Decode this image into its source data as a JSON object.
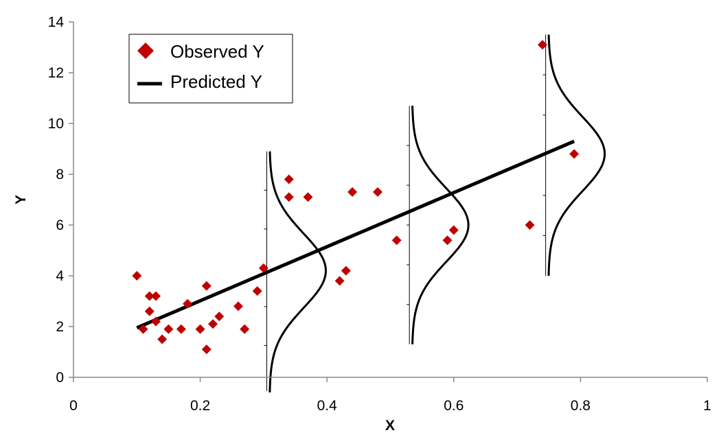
{
  "chart_data": {
    "type": "scatter",
    "xlabel": "X",
    "ylabel": "Y",
    "xlim": [
      0,
      1
    ],
    "ylim": [
      0,
      14
    ],
    "x_ticks": [
      "0",
      "0.2",
      "0.4",
      "0.6",
      "0.8",
      "1"
    ],
    "y_ticks": [
      "0",
      "2",
      "4",
      "6",
      "8",
      "10",
      "12",
      "14"
    ],
    "grid": false,
    "legend_position": "top-left",
    "colors": {
      "observed": "#c00000",
      "predicted": "#000000"
    },
    "series": [
      {
        "name": "Observed Y",
        "type": "scatter",
        "marker": "diamond",
        "points": [
          [
            0.1,
            4.0
          ],
          [
            0.11,
            1.9
          ],
          [
            0.12,
            3.2
          ],
          [
            0.12,
            2.6
          ],
          [
            0.13,
            3.2
          ],
          [
            0.13,
            2.2
          ],
          [
            0.14,
            1.5
          ],
          [
            0.15,
            1.9
          ],
          [
            0.17,
            1.9
          ],
          [
            0.18,
            2.9
          ],
          [
            0.2,
            1.9
          ],
          [
            0.21,
            3.6
          ],
          [
            0.21,
            1.1
          ],
          [
            0.22,
            2.1
          ],
          [
            0.23,
            2.4
          ],
          [
            0.26,
            2.8
          ],
          [
            0.27,
            1.9
          ],
          [
            0.29,
            3.4
          ],
          [
            0.3,
            4.3
          ],
          [
            0.34,
            7.8
          ],
          [
            0.34,
            7.1
          ],
          [
            0.37,
            7.1
          ],
          [
            0.42,
            3.8
          ],
          [
            0.43,
            4.2
          ],
          [
            0.44,
            7.3
          ],
          [
            0.48,
            7.3
          ],
          [
            0.51,
            5.4
          ],
          [
            0.59,
            5.4
          ],
          [
            0.6,
            5.8
          ],
          [
            0.72,
            6.0
          ],
          [
            0.74,
            13.1
          ],
          [
            0.79,
            8.8
          ]
        ]
      },
      {
        "name": "Predicted Y",
        "type": "line",
        "points": [
          [
            0.1,
            1.95
          ],
          [
            0.79,
            9.3
          ]
        ]
      }
    ],
    "distribution_curves": [
      {
        "x": 0.305,
        "mean": 4.2,
        "y_range": [
          -0.6,
          8.9
        ]
      },
      {
        "x": 0.53,
        "mean": 6.0,
        "y_range": [
          1.3,
          10.7
        ]
      },
      {
        "x": 0.745,
        "mean": 8.8,
        "y_range": [
          4.0,
          13.5
        ]
      }
    ]
  }
}
